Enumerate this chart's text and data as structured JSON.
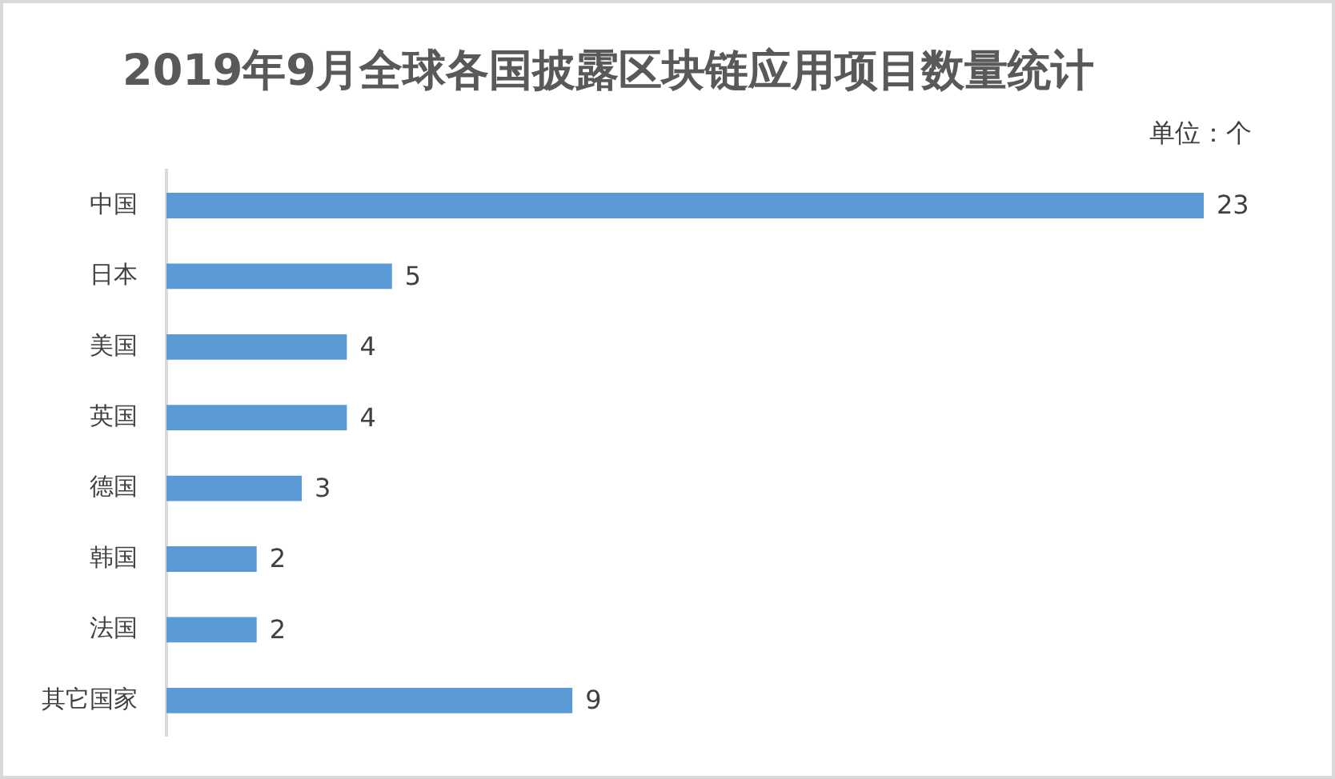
{
  "chart_data": {
    "type": "bar",
    "orientation": "horizontal",
    "title": "2019年9月全球各国披露区块链应用项目数量统计",
    "annotations": [
      "单位：个"
    ],
    "categories": [
      "中国",
      "日本",
      "美国",
      "英国",
      "德国",
      "韩国",
      "法国",
      "其它国家"
    ],
    "values": [
      23,
      5,
      4,
      4,
      3,
      2,
      2,
      9
    ],
    "color": "#5b9bd5",
    "xlim": [
      0,
      23
    ],
    "tick_labels": "y",
    "data_labels": true,
    "grid": false,
    "legend": false
  }
}
